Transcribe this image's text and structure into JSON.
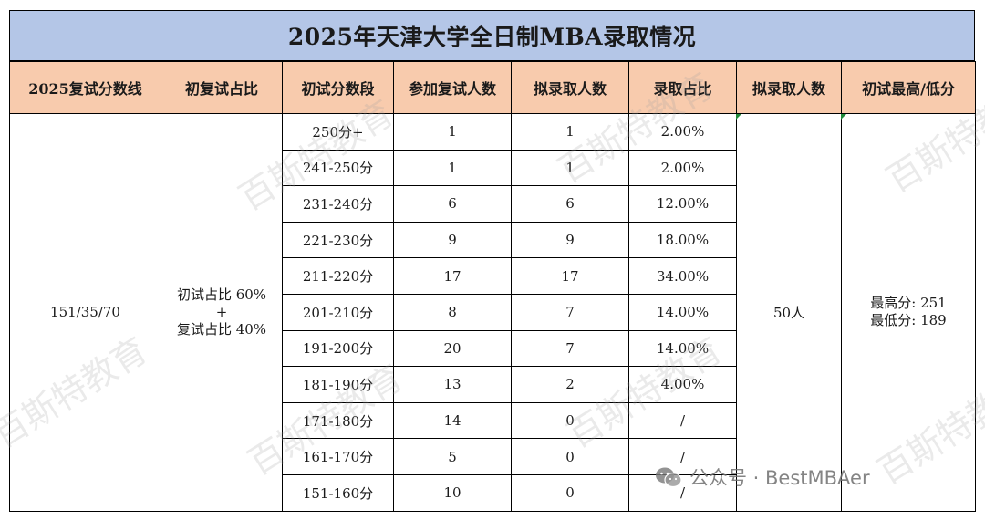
{
  "title": "2025年天津大学全日制MBA录取情况",
  "headers": [
    "2025复试分数线",
    "初复试占比",
    "初试分数段",
    "参加复试人数",
    "拟录取人数",
    "录取占比",
    "拟录取人数",
    "初试最高/低分"
  ],
  "cutoff": "151/35/70",
  "ratio": {
    "line1": "初试占比 60%",
    "line2": "+",
    "line3": "复试占比 40%"
  },
  "rows": [
    {
      "band": "250分+",
      "participants": "1",
      "admitted": "1",
      "rate": "2.00%"
    },
    {
      "band": "241-250分",
      "participants": "1",
      "admitted": "1",
      "rate": "2.00%"
    },
    {
      "band": "231-240分",
      "participants": "6",
      "admitted": "6",
      "rate": "12.00%"
    },
    {
      "band": "221-230分",
      "participants": "9",
      "admitted": "9",
      "rate": "18.00%"
    },
    {
      "band": "211-220分",
      "participants": "17",
      "admitted": "17",
      "rate": "34.00%"
    },
    {
      "band": "201-210分",
      "participants": "8",
      "admitted": "7",
      "rate": "14.00%"
    },
    {
      "band": "191-200分",
      "participants": "20",
      "admitted": "7",
      "rate": "14.00%"
    },
    {
      "band": "181-190分",
      "participants": "13",
      "admitted": "2",
      "rate": "4.00%"
    },
    {
      "band": "171-180分",
      "participants": "14",
      "admitted": "0",
      "rate": "/"
    },
    {
      "band": "161-170分",
      "participants": "5",
      "admitted": "0",
      "rate": "/"
    },
    {
      "band": "151-160分",
      "participants": "10",
      "admitted": "0",
      "rate": "/"
    }
  ],
  "total_admitted": "50人",
  "scores": {
    "highest": "最高分: 251",
    "lowest": "最低分: 189"
  },
  "watermark_text": "百斯特教育",
  "footer": {
    "icon": "wechat-icon",
    "text": "公众号 · BestMBAer"
  },
  "colors": {
    "title_bg": "#b4c6e7",
    "header_bg": "#f8cbad",
    "border": "#000000"
  }
}
